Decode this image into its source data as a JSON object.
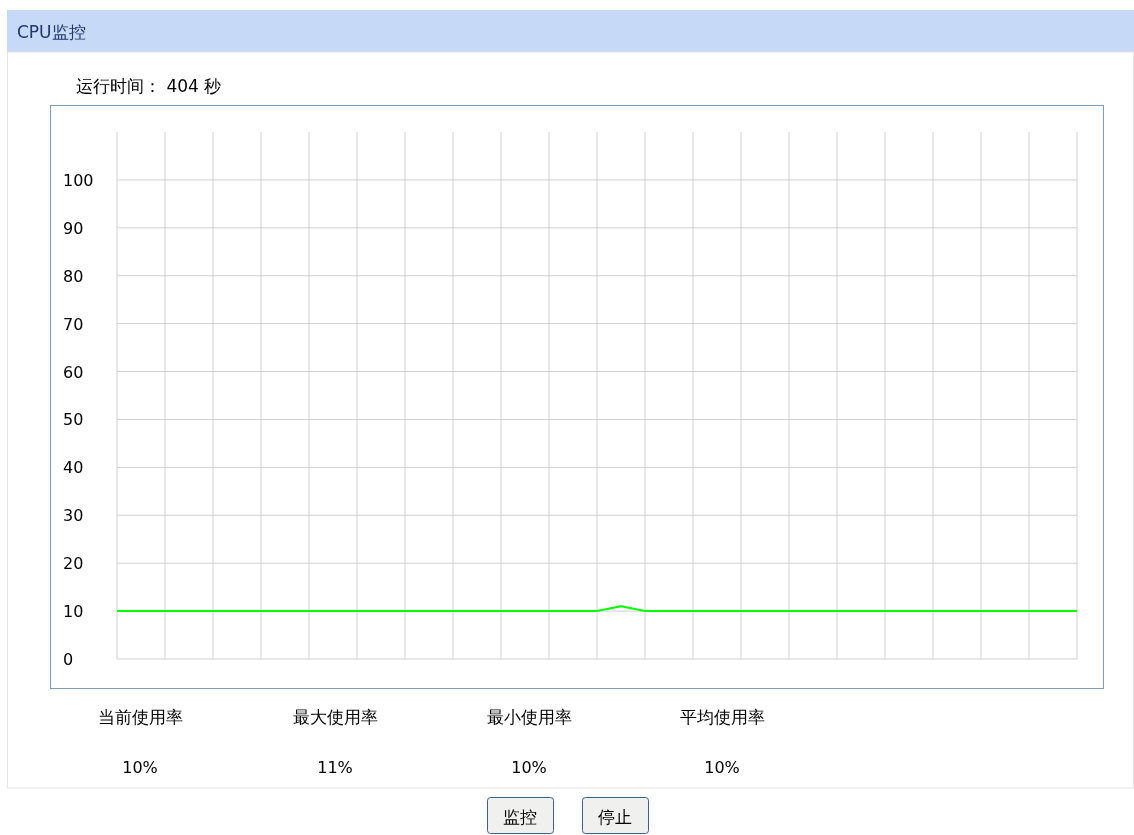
{
  "chart_data": {
    "type": "line",
    "title": "CPU监控",
    "categories": [
      null,
      null,
      null,
      null,
      null,
      null,
      null,
      null,
      null,
      null,
      null,
      null,
      null,
      null,
      null,
      null,
      null,
      null,
      null,
      null,
      null,
      null,
      null,
      null,
      null,
      null,
      null,
      null,
      null,
      null,
      null,
      null,
      null,
      null,
      null,
      null,
      null,
      null,
      null,
      null,
      null
    ],
    "series": [
      {
        "color": "#00ff00",
        "values": [
          10,
          10,
          10,
          10,
          10,
          10,
          10,
          10,
          10,
          10,
          10,
          10,
          10,
          10,
          10,
          10,
          10,
          10,
          10,
          10,
          10,
          11,
          10,
          10,
          10,
          10,
          10,
          10,
          10,
          10,
          10,
          10,
          10,
          10,
          10,
          10,
          10,
          10,
          10,
          10,
          10
        ]
      }
    ],
    "ylim": [
      0,
      110
    ],
    "yticks": [
      0,
      10,
      20,
      30,
      40,
      50,
      60,
      70,
      80,
      90,
      100
    ],
    "grid": true,
    "annotations": [
      "运行时间：  404 秒",
      "当前使用率",
      "10%",
      "最大使用率",
      "11%",
      "最小使用率",
      "10%",
      "平均使用率",
      "10%",
      "监控",
      "停止"
    ]
  }
}
